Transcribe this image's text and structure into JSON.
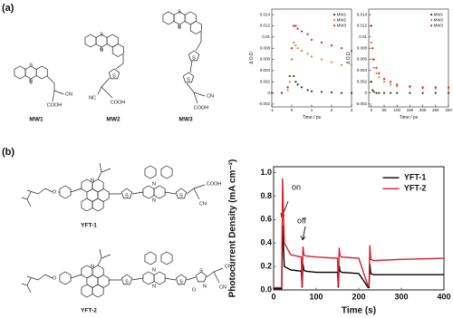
{
  "panel_labels": [
    "(a)",
    "(b)"
  ],
  "molecules": [
    {
      "label": "MW1",
      "atoms": [
        "S",
        "N",
        "CN",
        "COOH"
      ]
    },
    {
      "label": "MW2",
      "atoms": [
        "S",
        "N",
        "S",
        "NC",
        "COOH"
      ]
    },
    {
      "label": "MW3",
      "atoms": [
        "S",
        "N",
        "S",
        "S",
        "CN",
        "COOH"
      ]
    },
    {
      "label": "YFT-1",
      "atoms": [
        "N",
        "N",
        "N",
        "S",
        "S",
        "COOH",
        "CN",
        "O"
      ]
    },
    {
      "label": "YFT-2",
      "atoms": [
        "N",
        "N",
        "N",
        "S",
        "S",
        "S",
        "N",
        "O",
        "CN",
        "CN",
        "O"
      ]
    }
  ],
  "chart_data": [
    {
      "type": "scatter",
      "x_label": "Time / ps",
      "y_label": "Δ O.D",
      "legend": "upper right",
      "x": [
        -1,
        -0.5,
        -0.2,
        -0.1,
        0,
        0.1,
        0.2,
        0.3,
        0.5,
        0.8,
        1,
        1.5,
        2,
        2.5,
        3
      ],
      "series": [
        {
          "name": "MW1",
          "color": "#1f3f1f",
          "values": [
            0,
            0,
            0.001,
            0.003,
            0.006,
            0.003,
            0.002,
            0.0015,
            0.001,
            0.0005,
            0.0003,
            0.0002,
            0.0001,
            0,
            0
          ]
        },
        {
          "name": "MW2",
          "color": "#f07a20",
          "values": [
            0,
            0,
            0.0005,
            0.002,
            0.006,
            0.009,
            0.0085,
            0.008,
            0.0075,
            0.007,
            0.0065,
            0.006,
            0.0055,
            0.005,
            0.005
          ]
        },
        {
          "name": "MW3",
          "color": "#d8201c",
          "values": [
            0,
            0,
            0.001,
            0.003,
            0.008,
            0.012,
            0.012,
            0.0115,
            0.011,
            0.0105,
            0.0095,
            0.009,
            0.0085,
            0.008,
            0.0075
          ]
        }
      ],
      "xlim": [
        -1,
        3
      ],
      "xticks": [
        -1,
        0,
        1,
        2,
        3
      ],
      "ylim": [
        -0.0025,
        0.015
      ],
      "yticks": [
        -0.002,
        0,
        0.002,
        0.004,
        0.006,
        0.008,
        0.01,
        0.012,
        0.014
      ]
    },
    {
      "type": "scatter",
      "x_label": "Time / ps",
      "y_label": "Δ O.D",
      "legend": "upper right",
      "x": [
        0,
        5,
        10,
        20,
        30,
        50,
        75,
        100,
        150,
        200,
        250,
        300
      ],
      "series": [
        {
          "name": "MW1",
          "color": "#1f3f1f",
          "values": [
            0.002,
            0.0005,
            0.0002,
            0,
            0,
            0,
            0,
            0,
            0,
            0,
            0,
            0
          ]
        },
        {
          "name": "MW2",
          "color": "#f07a20",
          "values": [
            0.009,
            0.006,
            0.0045,
            0.0035,
            0.0028,
            0.002,
            0.0015,
            0.0012,
            0.001,
            0.0008,
            0.0008,
            0.0008
          ]
        },
        {
          "name": "MW3",
          "color": "#d8201c",
          "values": [
            0.012,
            0.008,
            0.006,
            0.0045,
            0.0035,
            0.0025,
            0.002,
            0.0015,
            0.0012,
            0.001,
            0.001,
            0.001
          ]
        }
      ],
      "xlim": [
        -10,
        300
      ],
      "xticks": [
        0,
        50,
        100,
        150,
        200,
        250,
        300
      ],
      "ylim": [
        -0.0025,
        0.015
      ],
      "yticks": [
        -0.002,
        0,
        0.002,
        0.004,
        0.006,
        0.008,
        0.01,
        0.012,
        0.014
      ]
    },
    {
      "type": "line",
      "x_label": "Time (s)",
      "y_label": "Photocurrent Density (mA cm⁻²)",
      "legend": "upper right",
      "annotations": [
        "on",
        "off"
      ],
      "x": [
        0,
        19,
        21,
        25,
        40,
        65,
        67,
        69,
        71,
        75,
        100,
        150,
        152,
        154,
        156,
        160,
        200,
        222,
        224,
        226,
        228,
        235,
        300,
        400
      ],
      "series": [
        {
          "name": "YFT-1",
          "color": "#000000",
          "values": [
            0.01,
            0.01,
            0.55,
            0.2,
            0.17,
            0.16,
            0.02,
            0.22,
            0.17,
            0.16,
            0.15,
            0.15,
            0.02,
            0.21,
            0.16,
            0.15,
            0.14,
            0.02,
            0.02,
            0.22,
            0.14,
            0.13,
            0.13,
            0.13
          ]
        },
        {
          "name": "YFT-2",
          "color": "#d8202a",
          "values": [
            0.02,
            0.02,
            0.95,
            0.4,
            0.3,
            0.28,
            0.03,
            0.37,
            0.3,
            0.29,
            0.28,
            0.27,
            0.03,
            0.36,
            0.29,
            0.28,
            0.27,
            0.03,
            0.03,
            0.38,
            0.26,
            0.25,
            0.26,
            0.27
          ]
        }
      ],
      "xlim": [
        0,
        400
      ],
      "xticks": [
        0,
        100,
        200,
        300,
        400
      ],
      "ylim": [
        0,
        1.05
      ],
      "yticks": [
        {
          "value": 0,
          "label": "0.0"
        },
        0.2,
        0.4,
        0.6,
        0.8,
        {
          "value": 1,
          "label": "1.0"
        }
      ]
    }
  ]
}
